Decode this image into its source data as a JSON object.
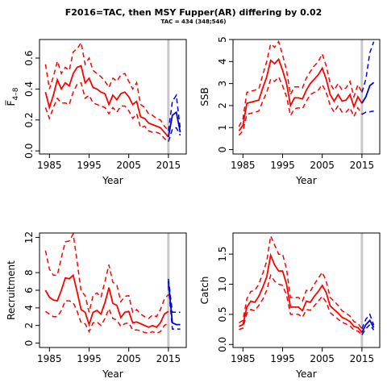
{
  "title": "F2016=TAC, then MSY Fupper(AR) differing by 0.02",
  "subtitle": "TAC = 434 (348;546)",
  "chart_data": [
    {
      "type": "line",
      "ylabel": "F̅",
      "ylabel_sub": "4–8",
      "xlabel": "Year",
      "xlim": [
        1982.5,
        2019.5
      ],
      "ylim": [
        -0.02,
        0.72
      ],
      "xticks": [
        1985,
        1995,
        2005,
        2015
      ],
      "yticks": [
        0.0,
        0.2,
        0.4,
        0.6
      ],
      "ytick_labels": [
        "0.0",
        "0.2",
        "0.4",
        "0.6"
      ],
      "vline": 2015,
      "hist_x": [
        1984,
        1985,
        1986,
        1987,
        1988,
        1989,
        1990,
        1991,
        1992,
        1993,
        1994,
        1995,
        1996,
        1997,
        1998,
        1999,
        2000,
        2001,
        2002,
        2003,
        2004,
        2005,
        2006,
        2007,
        2008,
        2009,
        2010,
        2011,
        2012,
        2013,
        2014,
        2015
      ],
      "hist_est": [
        0.38,
        0.28,
        0.36,
        0.46,
        0.4,
        0.44,
        0.42,
        0.5,
        0.54,
        0.55,
        0.44,
        0.47,
        0.41,
        0.4,
        0.38,
        0.37,
        0.3,
        0.36,
        0.33,
        0.37,
        0.38,
        0.35,
        0.3,
        0.32,
        0.22,
        0.21,
        0.18,
        0.17,
        0.16,
        0.15,
        0.12,
        0.09
      ],
      "hist_lo": [
        0.28,
        0.21,
        0.28,
        0.34,
        0.31,
        0.31,
        0.3,
        0.38,
        0.43,
        0.44,
        0.34,
        0.36,
        0.31,
        0.3,
        0.29,
        0.28,
        0.24,
        0.28,
        0.25,
        0.29,
        0.29,
        0.26,
        0.21,
        0.24,
        0.15,
        0.16,
        0.13,
        0.12,
        0.12,
        0.11,
        0.08,
        0.06
      ],
      "hist_hi": [
        0.56,
        0.4,
        0.48,
        0.58,
        0.5,
        0.54,
        0.52,
        0.64,
        0.66,
        0.7,
        0.56,
        0.6,
        0.52,
        0.5,
        0.48,
        0.45,
        0.41,
        0.47,
        0.45,
        0.49,
        0.5,
        0.45,
        0.4,
        0.44,
        0.3,
        0.28,
        0.24,
        0.23,
        0.21,
        0.2,
        0.16,
        0.13
      ],
      "proj_x": [
        2015,
        2016,
        2017,
        2018
      ],
      "proj_est": [
        0.09,
        0.23,
        0.25,
        0.12
      ],
      "proj_lo": [
        0.06,
        0.14,
        0.15,
        0.1
      ],
      "proj_hi": [
        0.13,
        0.32,
        0.36,
        0.14
      ]
    },
    {
      "type": "line",
      "ylabel": "SSB",
      "xlabel": "Year",
      "xlim": [
        1982.5,
        2019.5
      ],
      "ylim": [
        -0.2,
        5.0
      ],
      "xticks": [
        1985,
        1995,
        2005,
        2015
      ],
      "yticks": [
        0,
        1,
        2,
        3,
        4,
        5
      ],
      "ytick_labels": [
        "0",
        "1",
        "2",
        "3",
        "4",
        "5"
      ],
      "vline": 2015,
      "hist_x": [
        1984,
        1985,
        1986,
        1987,
        1988,
        1989,
        1990,
        1991,
        1992,
        1993,
        1994,
        1995,
        1996,
        1997,
        1998,
        1999,
        2000,
        2001,
        2002,
        2003,
        2004,
        2005,
        2006,
        2007,
        2008,
        2009,
        2010,
        2011,
        2012,
        2013,
        2014,
        2015
      ],
      "hist_est": [
        0.85,
        1.1,
        2.1,
        2.15,
        2.2,
        2.25,
        2.8,
        3.3,
        4.05,
        3.9,
        4.1,
        3.6,
        3.0,
        2.0,
        2.35,
        2.35,
        2.3,
        2.7,
        3.0,
        3.2,
        3.4,
        3.7,
        3.2,
        2.5,
        2.2,
        2.5,
        2.2,
        2.25,
        2.5,
        1.95,
        2.4,
        2.1
      ],
      "hist_lo": [
        0.65,
        0.85,
        1.6,
        1.65,
        1.7,
        1.75,
        2.2,
        2.6,
        3.2,
        3.1,
        3.3,
        2.9,
        2.4,
        1.55,
        1.85,
        1.9,
        1.85,
        2.2,
        2.5,
        2.6,
        2.7,
        2.95,
        2.6,
        2.0,
        1.7,
        2.0,
        1.7,
        1.7,
        1.9,
        1.5,
        1.9,
        1.6
      ],
      "hist_hi": [
        1.05,
        1.4,
        2.6,
        2.65,
        2.7,
        2.75,
        3.4,
        4.0,
        4.8,
        4.65,
        4.9,
        4.3,
        3.6,
        2.5,
        2.85,
        2.85,
        2.8,
        3.25,
        3.55,
        3.8,
        4.0,
        4.35,
        3.8,
        3.0,
        2.7,
        3.0,
        2.7,
        2.8,
        3.1,
        2.4,
        2.95,
        2.6
      ],
      "proj_x": [
        2015,
        2016,
        2017,
        2018
      ],
      "proj_est": [
        2.1,
        2.4,
        2.9,
        3.05
      ],
      "proj_lo": [
        1.6,
        1.7,
        1.72,
        1.75
      ],
      "proj_hi": [
        2.6,
        3.2,
        4.4,
        4.9
      ]
    },
    {
      "type": "line",
      "ylabel": "Recruitment",
      "xlabel": "Year",
      "xlim": [
        1982.5,
        2019.5
      ],
      "ylim": [
        -0.5,
        12.5
      ],
      "xticks": [
        1985,
        1995,
        2005,
        2015
      ],
      "yticks": [
        0,
        2,
        4,
        6,
        8,
        12
      ],
      "ytick_labels": [
        "0",
        "2",
        "4",
        "6",
        "8",
        "12"
      ],
      "vline": 2015,
      "hist_x": [
        1984,
        1985,
        1986,
        1987,
        1988,
        1989,
        1990,
        1991,
        1992,
        1993,
        1994,
        1995,
        1996,
        1997,
        1998,
        1999,
        2000,
        2001,
        2002,
        2003,
        2004,
        2005,
        2006,
        2007,
        2008,
        2009,
        2010,
        2011,
        2012,
        2013,
        2014,
        2015
      ],
      "hist_est": [
        6.0,
        5.2,
        4.9,
        4.8,
        6.0,
        7.4,
        7.3,
        7.7,
        5.8,
        3.8,
        3.5,
        2.1,
        3.5,
        3.7,
        3.3,
        4.6,
        6.3,
        4.5,
        4.3,
        2.9,
        3.5,
        3.6,
        2.3,
        2.4,
        2.2,
        2.0,
        1.8,
        2.0,
        1.8,
        2.3,
        3.3,
        3.6
      ],
      "hist_lo": [
        3.6,
        3.3,
        3.0,
        3.0,
        3.7,
        4.8,
        4.8,
        4.6,
        3.6,
        2.3,
        2.2,
        1.3,
        2.3,
        2.4,
        2.0,
        2.8,
        3.9,
        2.8,
        2.6,
        1.9,
        2.2,
        2.3,
        1.5,
        1.5,
        1.4,
        1.2,
        1.1,
        1.3,
        1.1,
        1.3,
        2.0,
        2.3
      ],
      "hist_hi": [
        10.5,
        8.4,
        7.7,
        7.7,
        9.7,
        11.5,
        11.6,
        12.4,
        9.2,
        5.9,
        5.4,
        3.5,
        5.4,
        5.7,
        5.2,
        7.0,
        8.9,
        6.9,
        6.6,
        4.7,
        5.3,
        5.4,
        3.5,
        3.8,
        3.3,
        3.0,
        2.8,
        3.2,
        3.0,
        3.8,
        5.0,
        5.5
      ],
      "proj_x": [
        2015,
        2016,
        2017,
        2018
      ],
      "proj_est": [
        7.0,
        2.3,
        2.1,
        2.1
      ],
      "proj_lo": [
        6.5,
        1.6,
        1.6,
        1.6
      ],
      "proj_hi": [
        7.3,
        3.5,
        3.5,
        3.5
      ]
    },
    {
      "type": "line",
      "ylabel": "Catch",
      "xlabel": "Year",
      "xlim": [
        1982.5,
        2019.5
      ],
      "ylim": [
        -0.05,
        1.85
      ],
      "xticks": [
        1985,
        1995,
        2005,
        2015
      ],
      "yticks": [
        0.0,
        0.5,
        1.0,
        1.5
      ],
      "ytick_labels": [
        "0.0",
        "0.5",
        "1.0",
        "1.5"
      ],
      "vline": 2015,
      "hist_x": [
        1984,
        1985,
        1986,
        1987,
        1988,
        1989,
        1990,
        1991,
        1992,
        1993,
        1994,
        1995,
        1996,
        1997,
        1998,
        1999,
        2000,
        2001,
        2002,
        2003,
        2004,
        2005,
        2006,
        2007,
        2008,
        2009,
        2010,
        2011,
        2012,
        2013,
        2014,
        2015
      ],
      "hist_est": [
        0.3,
        0.33,
        0.62,
        0.72,
        0.7,
        0.8,
        0.95,
        1.12,
        1.48,
        1.32,
        1.22,
        1.22,
        1.0,
        0.62,
        0.62,
        0.62,
        0.56,
        0.72,
        0.7,
        0.8,
        0.88,
        0.98,
        0.86,
        0.64,
        0.58,
        0.52,
        0.45,
        0.42,
        0.38,
        0.3,
        0.28,
        0.2
      ],
      "hist_lo": [
        0.25,
        0.27,
        0.52,
        0.58,
        0.56,
        0.65,
        0.75,
        0.9,
        1.15,
        1.05,
        1.0,
        0.98,
        0.82,
        0.5,
        0.5,
        0.5,
        0.45,
        0.58,
        0.57,
        0.64,
        0.72,
        0.8,
        0.7,
        0.53,
        0.47,
        0.42,
        0.37,
        0.34,
        0.31,
        0.24,
        0.22,
        0.16
      ],
      "hist_hi": [
        0.36,
        0.4,
        0.76,
        0.88,
        0.9,
        1.0,
        1.18,
        1.38,
        1.8,
        1.65,
        1.5,
        1.5,
        1.25,
        0.78,
        0.78,
        0.78,
        0.72,
        0.9,
        0.88,
        1.0,
        1.1,
        1.2,
        1.05,
        0.78,
        0.72,
        0.65,
        0.56,
        0.52,
        0.47,
        0.38,
        0.35,
        0.26
      ],
      "proj_x": [
        2015,
        2016,
        2017,
        2018
      ],
      "proj_est": [
        0.2,
        0.33,
        0.4,
        0.28
      ],
      "proj_lo": [
        0.16,
        0.26,
        0.33,
        0.24
      ],
      "proj_hi": [
        0.26,
        0.42,
        0.5,
        0.32
      ]
    }
  ]
}
